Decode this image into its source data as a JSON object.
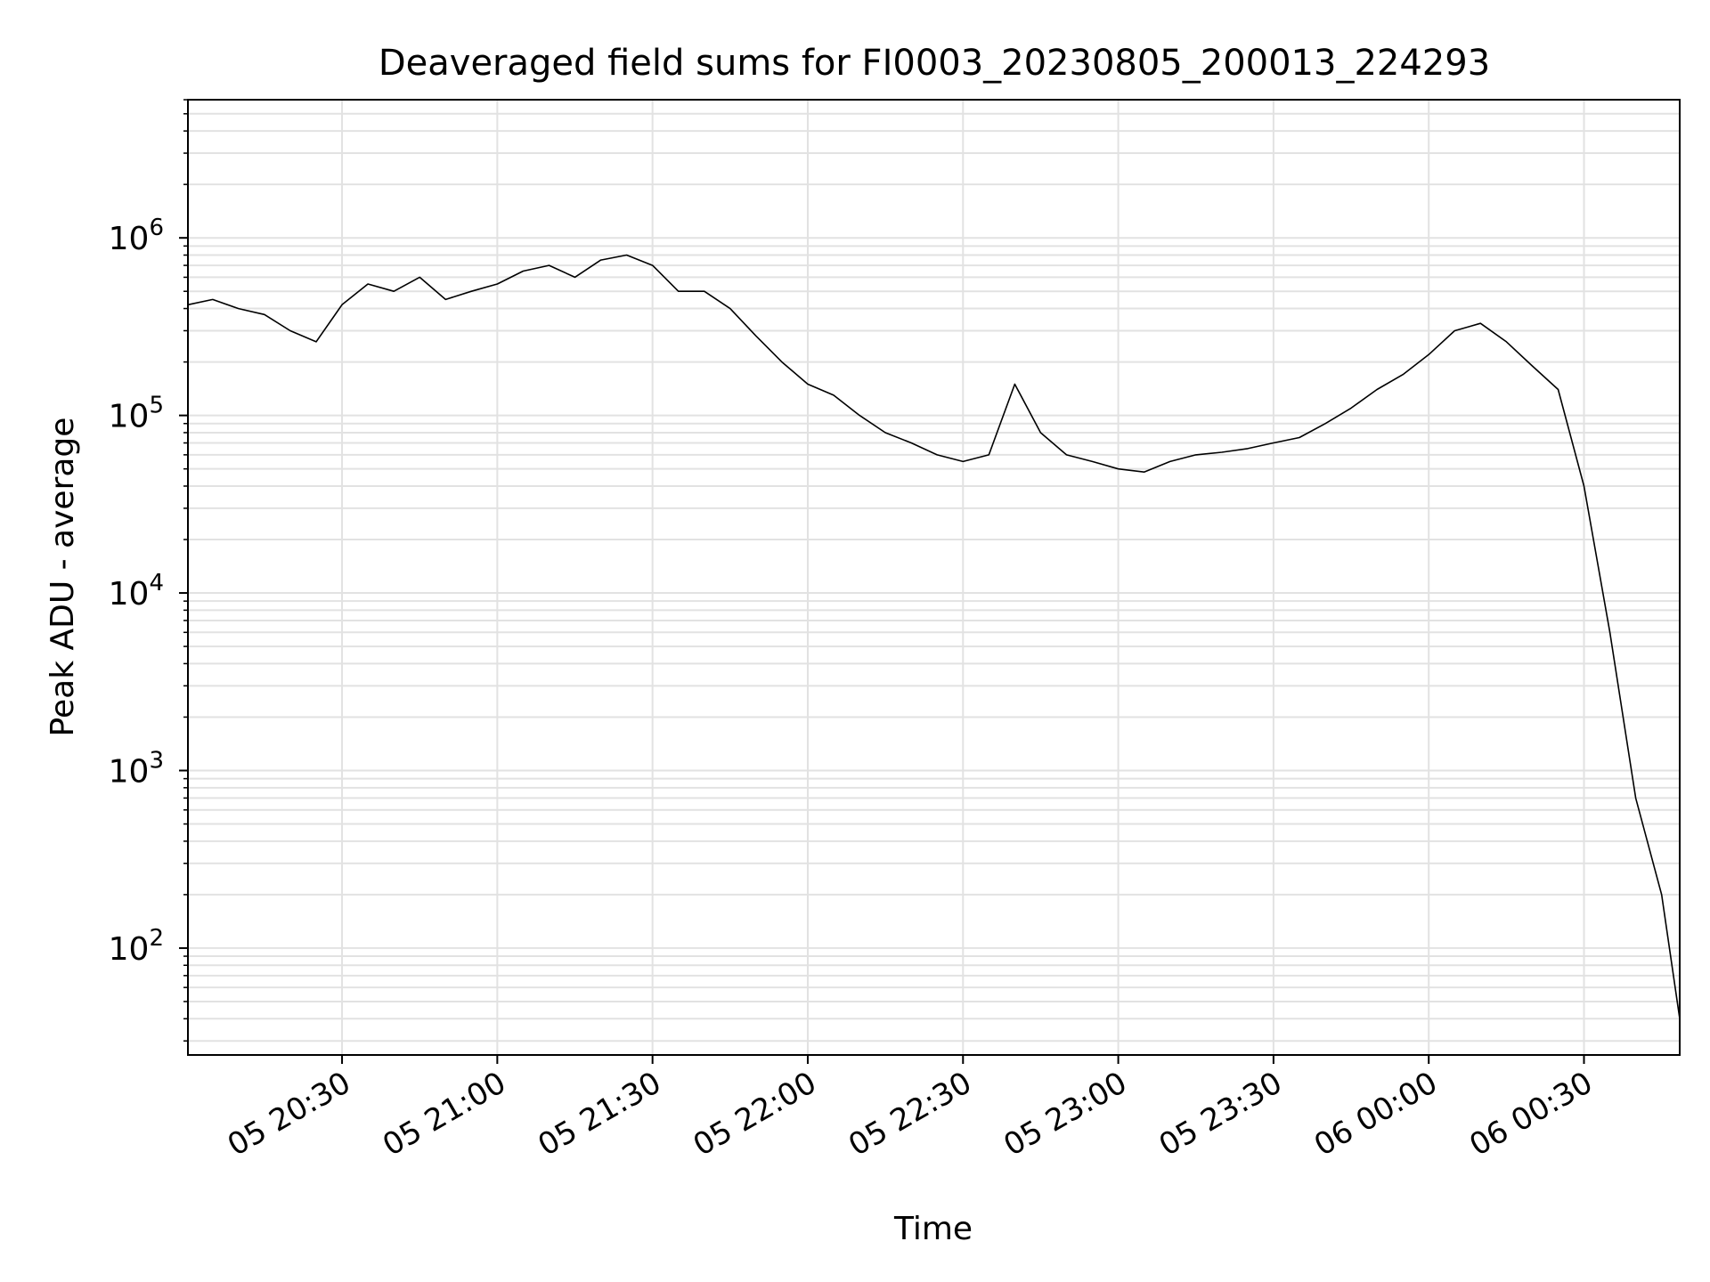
{
  "chart_data": {
    "type": "line",
    "title": "Deaveraged field sums for FI0003_20230805_200013_224293",
    "xlabel": "Time",
    "ylabel": "Peak ADU - average",
    "x_axis": {
      "kind": "datetime",
      "range": [
        "2023-08-05T20:00:13",
        "2023-08-06T00:48:30"
      ],
      "tick_values": [
        "2023-08-05T20:30:00",
        "2023-08-05T21:00:00",
        "2023-08-05T21:30:00",
        "2023-08-05T22:00:00",
        "2023-08-05T22:30:00",
        "2023-08-05T23:00:00",
        "2023-08-05T23:30:00",
        "2023-08-06T00:00:00",
        "2023-08-06T00:30:00"
      ],
      "tick_labels": [
        "05 20:30",
        "05 21:00",
        "05 21:30",
        "05 22:00",
        "05 22:30",
        "05 23:00",
        "05 23:30",
        "06 00:00",
        "06 00:30"
      ]
    },
    "y_axis": {
      "scale": "log",
      "range": [
        25,
        6000000
      ],
      "tick_values": [
        100,
        1000,
        10000,
        100000,
        1000000
      ],
      "tick_labels": [
        {
          "base": "10",
          "exp": "2"
        },
        {
          "base": "10",
          "exp": "3"
        },
        {
          "base": "10",
          "exp": "4"
        },
        {
          "base": "10",
          "exp": "5"
        },
        {
          "base": "10",
          "exp": "6"
        }
      ]
    },
    "grid": true,
    "legend": "none",
    "colors": {
      "line": "#000000",
      "grid": "#e2e2e2",
      "axes": "#000000"
    },
    "series": [
      {
        "x": [
          "2023-08-05T20:00:13",
          "2023-08-05T20:05:00",
          "2023-08-05T20:10:00",
          "2023-08-05T20:15:00",
          "2023-08-05T20:20:00",
          "2023-08-05T20:25:00",
          "2023-08-05T20:30:00",
          "2023-08-05T20:35:00",
          "2023-08-05T20:40:00",
          "2023-08-05T20:45:00",
          "2023-08-05T20:50:00",
          "2023-08-05T20:55:00",
          "2023-08-05T21:00:00",
          "2023-08-05T21:05:00",
          "2023-08-05T21:10:00",
          "2023-08-05T21:15:00",
          "2023-08-05T21:20:00",
          "2023-08-05T21:25:00",
          "2023-08-05T21:30:00",
          "2023-08-05T21:35:00",
          "2023-08-05T21:40:00",
          "2023-08-05T21:45:00",
          "2023-08-05T21:50:00",
          "2023-08-05T21:55:00",
          "2023-08-05T22:00:00",
          "2023-08-05T22:05:00",
          "2023-08-05T22:10:00",
          "2023-08-05T22:15:00",
          "2023-08-05T22:20:00",
          "2023-08-05T22:25:00",
          "2023-08-05T22:30:00",
          "2023-08-05T22:35:00",
          "2023-08-05T22:40:00",
          "2023-08-05T22:45:00",
          "2023-08-05T22:50:00",
          "2023-08-05T22:55:00",
          "2023-08-05T23:00:00",
          "2023-08-05T23:05:00",
          "2023-08-05T23:10:00",
          "2023-08-05T23:15:00",
          "2023-08-05T23:20:00",
          "2023-08-05T23:25:00",
          "2023-08-05T23:30:00",
          "2023-08-05T23:35:00",
          "2023-08-05T23:40:00",
          "2023-08-05T23:45:00",
          "2023-08-05T23:50:00",
          "2023-08-05T23:55:00",
          "2023-08-06T00:00:00",
          "2023-08-06T00:05:00",
          "2023-08-06T00:10:00",
          "2023-08-06T00:15:00",
          "2023-08-06T00:20:00",
          "2023-08-06T00:25:00",
          "2023-08-06T00:30:00",
          "2023-08-06T00:35:00",
          "2023-08-06T00:40:00",
          "2023-08-06T00:45:00",
          "2023-08-06T00:48:30"
        ],
        "values": [
          420000,
          450000,
          400000,
          370000,
          300000,
          260000,
          420000,
          550000,
          500000,
          600000,
          450000,
          500000,
          550000,
          650000,
          700000,
          600000,
          750000,
          800000,
          700000,
          500000,
          500000,
          400000,
          280000,
          200000,
          150000,
          130000,
          100000,
          80000,
          70000,
          60000,
          55000,
          60000,
          150000,
          80000,
          60000,
          55000,
          50000,
          48000,
          55000,
          60000,
          62000,
          65000,
          70000,
          75000,
          90000,
          110000,
          140000,
          170000,
          220000,
          300000,
          330000,
          260000,
          190000,
          140000,
          40000,
          6000,
          700,
          200,
          40
        ]
      }
    ]
  }
}
